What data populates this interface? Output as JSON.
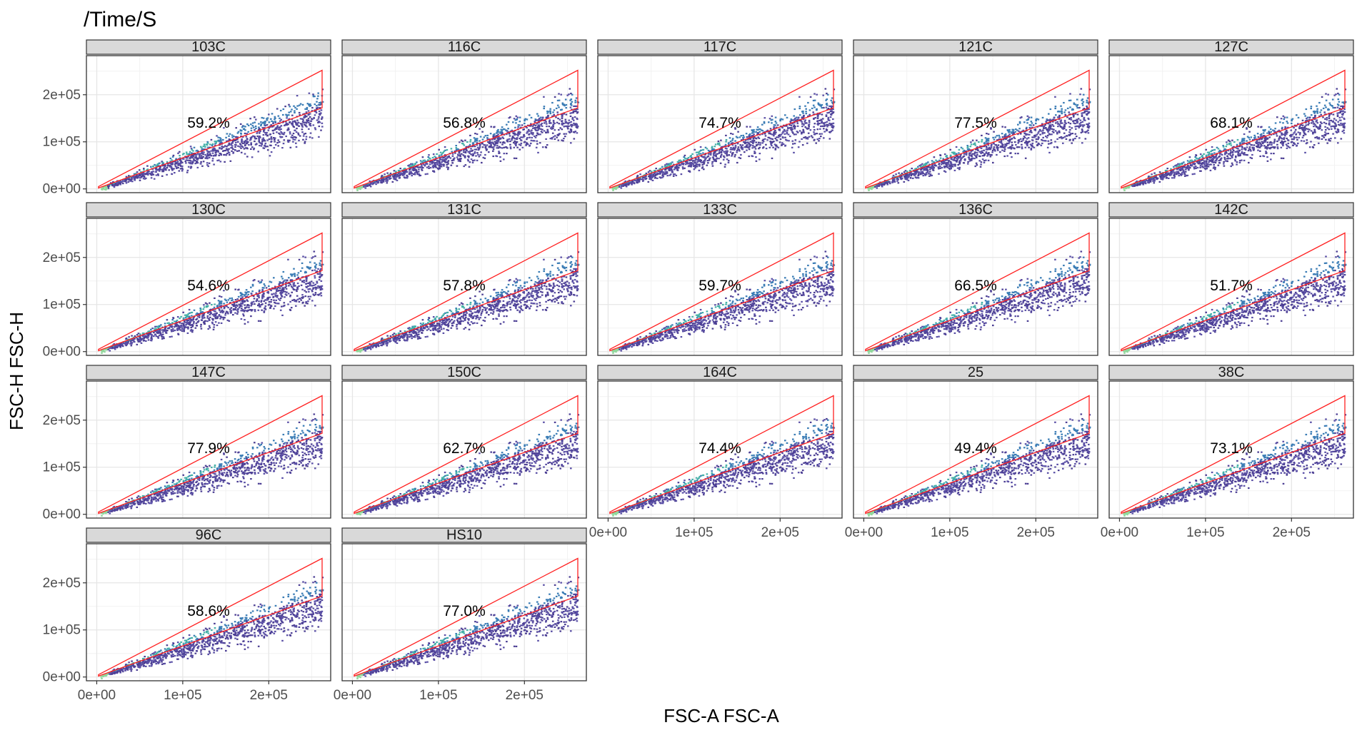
{
  "chart_data": {
    "type": "scatter",
    "subtype": "faceted density (hexbin) scatter with polygon gate",
    "title": "/Time/S",
    "xlabel": "FSC-A FSC-A",
    "ylabel": "FSC-H FSC-H",
    "xlim": [
      -12000,
      272000
    ],
    "ylim": [
      -8000,
      283000
    ],
    "x_ticks": [
      {
        "value": 0,
        "label": "0e+00"
      },
      {
        "value": 100000,
        "label": "1e+05"
      },
      {
        "value": 200000,
        "label": "2e+05"
      }
    ],
    "y_ticks": [
      {
        "value": 0,
        "label": "0e+00"
      },
      {
        "value": 100000,
        "label": "1e+05"
      },
      {
        "value": 200000,
        "label": "2e+05"
      }
    ],
    "grid": true,
    "facet_layout": {
      "columns": 5,
      "rows": 4
    },
    "gate_polygon": [
      [
        2000,
        5000
      ],
      [
        262000,
        252000
      ],
      [
        262000,
        172000
      ],
      [
        2000,
        2000
      ]
    ],
    "gate_color": "#ff2020",
    "density_colors": [
      "#4c3f94",
      "#5a4fa6",
      "#3a7cb5",
      "#45b0a8",
      "#8fd79a"
    ],
    "panels": [
      {
        "label": "103C",
        "percent": "59.2%"
      },
      {
        "label": "116C",
        "percent": "56.8%"
      },
      {
        "label": "117C",
        "percent": "74.7%"
      },
      {
        "label": "121C",
        "percent": "77.5%"
      },
      {
        "label": "127C",
        "percent": "68.1%"
      },
      {
        "label": "130C",
        "percent": "54.6%"
      },
      {
        "label": "131C",
        "percent": "57.8%"
      },
      {
        "label": "133C",
        "percent": "59.7%"
      },
      {
        "label": "136C",
        "percent": "66.5%"
      },
      {
        "label": "142C",
        "percent": "51.7%"
      },
      {
        "label": "147C",
        "percent": "77.9%"
      },
      {
        "label": "150C",
        "percent": "62.7%"
      },
      {
        "label": "164C",
        "percent": "74.4%"
      },
      {
        "label": "25",
        "percent": "49.4%"
      },
      {
        "label": "38C",
        "percent": "73.1%"
      },
      {
        "label": "96C",
        "percent": "58.6%"
      },
      {
        "label": "HS10",
        "percent": "77.0%"
      }
    ]
  }
}
